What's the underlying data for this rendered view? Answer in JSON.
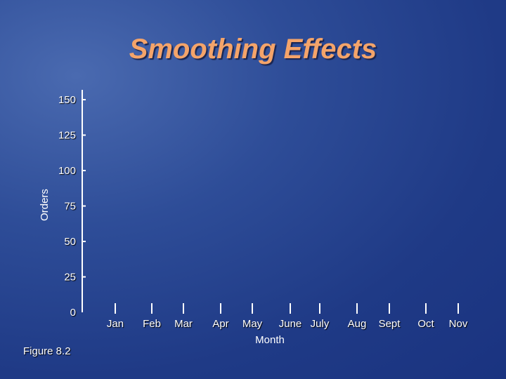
{
  "chart_data": {
    "type": "line",
    "title": "Smoothing Effects",
    "xlabel": "Month",
    "ylabel": "Orders",
    "categories": [
      "Jan",
      "Feb",
      "Mar",
      "Apr",
      "May",
      "June",
      "July",
      "Aug",
      "Sept",
      "Oct",
      "Nov"
    ],
    "yticks": [
      0,
      25,
      50,
      75,
      100,
      125,
      150
    ],
    "ylim": [
      0,
      150
    ],
    "series": []
  },
  "caption": "Figure 8.2"
}
